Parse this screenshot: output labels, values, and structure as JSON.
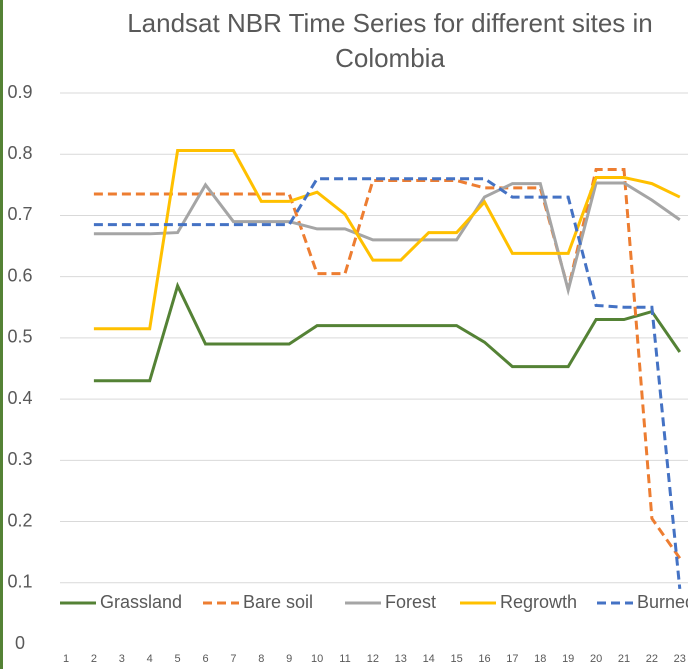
{
  "chart_data": {
    "type": "line",
    "title": "Landsat NBR Time Series for different sites in Colombia",
    "categories": [
      1,
      2,
      3,
      4,
      5,
      6,
      7,
      8,
      9,
      10,
      11,
      12,
      13,
      14,
      15,
      16,
      17,
      18,
      19,
      20,
      21,
      22,
      23
    ],
    "series": [
      {
        "name": "Grassland",
        "color": "#548235",
        "dashed": false,
        "values": [
          null,
          0.43,
          0.43,
          0.43,
          0.585,
          0.49,
          0.49,
          0.49,
          0.49,
          0.52,
          0.52,
          0.52,
          0.52,
          0.52,
          0.52,
          0.493,
          0.453,
          0.453,
          0.453,
          0.53,
          0.53,
          0.543,
          0.477
        ]
      },
      {
        "name": "Bare soil",
        "color": "#ed7d31",
        "dashed": true,
        "values": [
          null,
          0.735,
          0.735,
          0.735,
          0.735,
          0.735,
          0.735,
          0.735,
          0.735,
          0.605,
          0.605,
          0.757,
          0.757,
          0.757,
          0.757,
          0.745,
          0.745,
          0.745,
          0.58,
          0.775,
          0.775,
          0.205,
          0.14
        ]
      },
      {
        "name": "Forest",
        "color": "#a5a5a5",
        "dashed": false,
        "values": [
          null,
          0.67,
          0.67,
          0.67,
          0.672,
          0.75,
          0.69,
          0.69,
          0.69,
          0.678,
          0.678,
          0.66,
          0.66,
          0.66,
          0.66,
          0.73,
          0.752,
          0.752,
          0.578,
          0.753,
          0.753,
          0.725,
          0.693
        ]
      },
      {
        "name": "Regrowth",
        "color": "#ffc000",
        "dashed": false,
        "values": [
          null,
          0.515,
          0.515,
          0.515,
          0.806,
          0.806,
          0.806,
          0.723,
          0.723,
          0.738,
          0.702,
          0.627,
          0.627,
          0.672,
          0.672,
          0.722,
          0.638,
          0.638,
          0.638,
          0.762,
          0.762,
          0.752,
          0.73
        ]
      },
      {
        "name": "Burned",
        "color": "#4472c4",
        "dashed": true,
        "values": [
          null,
          0.685,
          0.685,
          0.685,
          0.685,
          0.685,
          0.685,
          0.685,
          0.685,
          0.76,
          0.76,
          0.76,
          0.76,
          0.76,
          0.76,
          0.76,
          0.73,
          0.73,
          0.73,
          0.553,
          0.55,
          0.55,
          0.09
        ]
      }
    ],
    "ylim": [
      0,
      0.9
    ],
    "yticks": [
      0,
      0.1,
      0.2,
      0.3,
      0.4,
      0.5,
      0.6,
      0.7,
      0.8,
      0.9
    ],
    "grid": true,
    "legend": "bottom"
  }
}
